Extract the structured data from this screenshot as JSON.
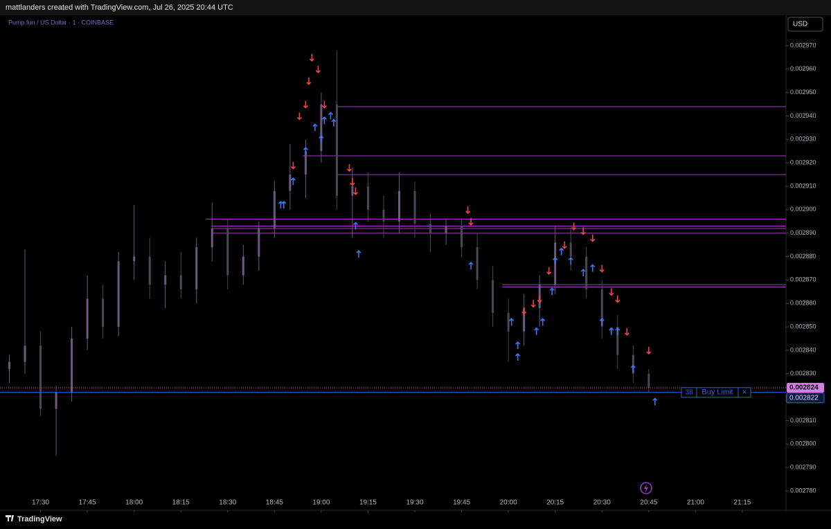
{
  "header": {
    "credit": "mattlanders created with TradingView.com, Jul 26, 2025 20:44 UTC",
    "symbol": "Pump.fun / US Dollar · 1 · COINBASE",
    "currency": "USD",
    "brand": "TradingView"
  },
  "chart_data": {
    "type": "candlestick",
    "x": [
      "17:20",
      "17:25",
      "17:30",
      "17:35",
      "17:40",
      "17:45",
      "17:50",
      "17:55",
      "18:00",
      "18:05",
      "18:10",
      "18:15",
      "18:20",
      "18:25",
      "18:30",
      "18:35",
      "18:40",
      "18:45",
      "18:50",
      "18:55",
      "19:00",
      "19:05",
      "19:10",
      "19:15",
      "19:20",
      "19:25",
      "19:30",
      "19:35",
      "19:40",
      "19:45",
      "19:50",
      "19:55",
      "20:00",
      "20:05",
      "20:10",
      "20:15",
      "20:20",
      "20:25",
      "20:30",
      "20:35",
      "20:40",
      "20:45"
    ],
    "open": [
      0.002832,
      0.002835,
      0.002842,
      0.002815,
      0.002822,
      0.002845,
      0.002862,
      0.00285,
      0.002878,
      0.00288,
      0.002868,
      0.002872,
      0.002866,
      0.002884,
      0.002892,
      0.002872,
      0.00288,
      0.002892,
      0.002908,
      0.002915,
      0.002925,
      0.002945,
      0.002906,
      0.00291,
      0.0029,
      0.002895,
      0.002908,
      0.002894,
      0.00289,
      0.002893,
      0.002884,
      0.00287,
      0.002856,
      0.002848,
      0.002858,
      0.002868,
      0.002886,
      0.00288,
      0.002866,
      0.00285,
      0.002838,
      0.00283
    ],
    "high": [
      0.002838,
      0.002883,
      0.002848,
      0.002825,
      0.00285,
      0.002872,
      0.002868,
      0.002882,
      0.002902,
      0.002888,
      0.002878,
      0.002882,
      0.002888,
      0.002903,
      0.002896,
      0.002885,
      0.002895,
      0.002912,
      0.002928,
      0.00293,
      0.00295,
      0.002968,
      0.002918,
      0.002916,
      0.002906,
      0.002916,
      0.002912,
      0.002898,
      0.002896,
      0.002896,
      0.00289,
      0.002876,
      0.002862,
      0.002864,
      0.002872,
      0.002893,
      0.002892,
      0.002884,
      0.00287,
      0.002855,
      0.002842,
      0.002832
    ],
    "low": [
      0.002826,
      0.00283,
      0.002812,
      0.002795,
      0.002818,
      0.00284,
      0.002845,
      0.002846,
      0.00287,
      0.002862,
      0.002858,
      0.002862,
      0.00286,
      0.002878,
      0.002866,
      0.002868,
      0.002874,
      0.002888,
      0.0029,
      0.002905,
      0.00292,
      0.0029,
      0.002888,
      0.002895,
      0.002888,
      0.00289,
      0.002888,
      0.002882,
      0.002885,
      0.00288,
      0.002866,
      0.00285,
      0.002835,
      0.002842,
      0.00285,
      0.002864,
      0.002874,
      0.002862,
      0.002845,
      0.002832,
      0.002826,
      0.002822
    ],
    "close": [
      0.002835,
      0.002842,
      0.002815,
      0.002822,
      0.002845,
      0.002862,
      0.00285,
      0.002878,
      0.00288,
      0.002868,
      0.002872,
      0.002866,
      0.002884,
      0.002892,
      0.002872,
      0.00288,
      0.002892,
      0.002908,
      0.002915,
      0.002925,
      0.002945,
      0.002906,
      0.00291,
      0.0029,
      0.002895,
      0.002908,
      0.002894,
      0.00289,
      0.002893,
      0.002884,
      0.00287,
      0.002856,
      0.002848,
      0.002858,
      0.002868,
      0.002886,
      0.00288,
      0.002866,
      0.00285,
      0.002838,
      0.00283,
      0.002824
    ],
    "up_color": "#6c5a80",
    "down_color": "#4a4a52",
    "xlim": [
      "17:17",
      "21:29"
    ],
    "xticks": [
      "17:30",
      "17:45",
      "18:00",
      "18:15",
      "18:30",
      "18:45",
      "19:00",
      "19:15",
      "19:30",
      "19:45",
      "20:00",
      "20:15",
      "20:30",
      "20:45",
      "21:00",
      "21:15"
    ],
    "ylim": [
      0.0027717,
      0.002983
    ],
    "yticks": [
      {
        "value": 0.00278,
        "label": "0.002780"
      },
      {
        "value": 0.00279,
        "label": "0.002790"
      },
      {
        "value": 0.0028,
        "label": "0.002800"
      },
      {
        "value": 0.00281,
        "label": "0.002810"
      },
      {
        "value": 0.00282,
        "label": "0.002820"
      },
      {
        "value": 0.00283,
        "label": "0.002830"
      },
      {
        "value": 0.00284,
        "label": "0.002840"
      },
      {
        "value": 0.00285,
        "label": "0.002850"
      },
      {
        "value": 0.00286,
        "label": "0.002860"
      },
      {
        "value": 0.00287,
        "label": "0.002870"
      },
      {
        "value": 0.00288,
        "label": "0.002880"
      },
      {
        "value": 0.00289,
        "label": "0.002890"
      },
      {
        "value": 0.0029,
        "label": "0.002900"
      },
      {
        "value": 0.00291,
        "label": "0.002910"
      },
      {
        "value": 0.00292,
        "label": "0.002920"
      },
      {
        "value": 0.00293,
        "label": "0.002930"
      },
      {
        "value": 0.00294,
        "label": "0.002940"
      },
      {
        "value": 0.00295,
        "label": "0.002950"
      },
      {
        "value": 0.00296,
        "label": "0.002960"
      },
      {
        "value": 0.00297,
        "label": "0.002970"
      }
    ],
    "levels": {
      "color": "#a23fc4",
      "items": [
        {
          "price": 0.002944,
          "from": "19:05"
        },
        {
          "price": 0.002923,
          "from": "18:54"
        },
        {
          "price": 0.002915,
          "from": "19:05"
        },
        {
          "price": 0.002896,
          "from": "18:23"
        },
        {
          "price": 0.002893,
          "from": "18:25"
        },
        {
          "price": 0.002892,
          "from": "18:25"
        },
        {
          "price": 0.00289,
          "from": "18:25"
        },
        {
          "price": 0.002868,
          "from": "19:58"
        },
        {
          "price": 0.002867,
          "from": "19:58"
        }
      ]
    },
    "buy_signals": {
      "color": "#3a78f2",
      "x": [
        "18:47",
        "18:48",
        "18:51",
        "18:55",
        "18:58",
        "19:00",
        "19:01",
        "19:03",
        "19:04",
        "19:11",
        "19:12",
        "19:48",
        "20:01",
        "20:03",
        "20:03",
        "20:09",
        "20:11",
        "20:14",
        "20:15",
        "20:17",
        "20:20",
        "20:24",
        "20:27",
        "20:30",
        "20:33",
        "20:35",
        "20:40",
        "20:47"
      ],
      "y": [
        0.002902,
        0.002902,
        0.002912,
        0.002925,
        0.002935,
        0.00293,
        0.002938,
        0.00294,
        0.002937,
        0.002893,
        0.002881,
        0.002876,
        0.002852,
        0.002837,
        0.002842,
        0.002848,
        0.002852,
        0.002865,
        0.002878,
        0.002882,
        0.002878,
        0.002873,
        0.002875,
        0.002852,
        0.002848,
        0.002848,
        0.002832,
        0.002818
      ]
    },
    "sell_signals": {
      "color": "#f0434a",
      "x": [
        "18:51",
        "18:53",
        "18:55",
        "18:56",
        "18:57",
        "18:59",
        "19:01",
        "19:09",
        "19:10",
        "19:11",
        "19:47",
        "19:48",
        "20:05",
        "20:08",
        "20:10",
        "20:13",
        "20:18",
        "20:21",
        "20:24",
        "20:27",
        "20:30",
        "20:33",
        "20:35",
        "20:38",
        "20:45"
      ],
      "y": [
        0.002919,
        0.00294,
        0.002945,
        0.002955,
        0.002965,
        0.00296,
        0.002945,
        0.002918,
        0.002912,
        0.002908,
        0.0029,
        0.002895,
        0.002857,
        0.00286,
        0.002862,
        0.002874,
        0.002885,
        0.002893,
        0.002891,
        0.002888,
        0.002875,
        0.002865,
        0.002862,
        0.002848,
        0.00284
      ]
    },
    "last_price": {
      "value": 0.002824,
      "color": "#d47fe0"
    },
    "order": {
      "price": 0.002822,
      "quantity": 38,
      "label": "Buy Limit",
      "close": "×",
      "color": "#2f62e8"
    }
  }
}
